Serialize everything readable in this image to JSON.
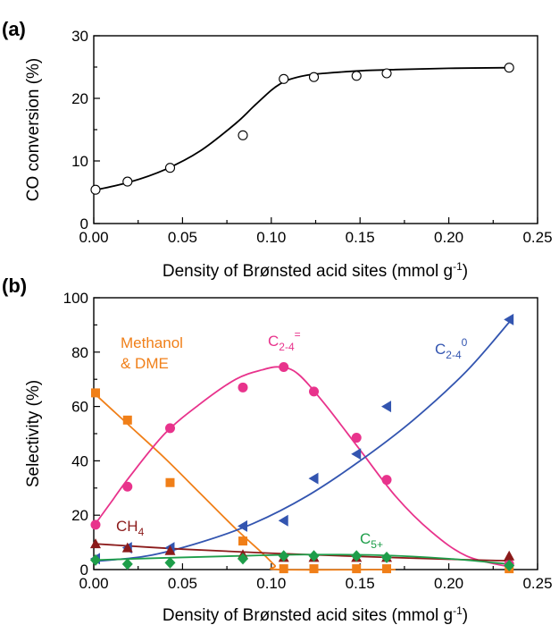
{
  "chart_data": [
    {
      "panel_label": "(a)",
      "type": "scatter",
      "xlabel": "Density of Brønsted acid sites (mmol g",
      "xlabel_sup": "-1",
      "xlabel_close": ")",
      "ylabel": "CO conversion (%)",
      "xlim": [
        0.0,
        0.25
      ],
      "ylim": [
        0,
        30
      ],
      "xticks": [
        "0.00",
        "0.05",
        "0.10",
        "0.15",
        "0.20",
        "0.25"
      ],
      "xtick_values": [
        0.0,
        0.05,
        0.1,
        0.15,
        0.2,
        0.25
      ],
      "yticks": [
        "0",
        "10",
        "20",
        "30"
      ],
      "ytick_values": [
        0,
        10,
        20,
        30
      ],
      "grid": false,
      "series": [
        {
          "marker": "open-circle",
          "color": "#000000",
          "x": [
            0.001,
            0.019,
            0.043,
            0.084,
            0.107,
            0.124,
            0.148,
            0.165,
            0.234
          ],
          "y": [
            5.4,
            6.7,
            8.9,
            14.1,
            23.1,
            23.4,
            23.6,
            24.0,
            24.9
          ]
        }
      ],
      "fit_curves": [
        {
          "color": "#000000",
          "x": [
            0.0,
            0.02,
            0.04,
            0.06,
            0.08,
            0.09,
            0.1,
            0.105,
            0.11,
            0.12,
            0.13,
            0.15,
            0.17,
            0.2,
            0.235
          ],
          "y": [
            5.3,
            6.6,
            8.6,
            11.6,
            16.0,
            18.7,
            21.3,
            22.3,
            23.0,
            23.7,
            24.0,
            24.4,
            24.6,
            24.8,
            24.9
          ]
        }
      ]
    },
    {
      "panel_label": "(b)",
      "type": "scatter",
      "xlabel": "Density of Brønsted acid sites (mmol g",
      "xlabel_sup": "-1",
      "xlabel_close": ")",
      "ylabel": "Selectivity (%)",
      "xlim": [
        0.0,
        0.25
      ],
      "ylim": [
        0,
        100
      ],
      "xticks": [
        "0.00",
        "0.05",
        "0.10",
        "0.15",
        "0.20",
        "0.25"
      ],
      "xtick_values": [
        0.0,
        0.05,
        0.1,
        0.15,
        0.2,
        0.25
      ],
      "yticks": [
        "0",
        "20",
        "40",
        "60",
        "80",
        "100"
      ],
      "ytick_values": [
        0,
        20,
        40,
        60,
        80,
        100
      ],
      "grid": false,
      "series": [
        {
          "label_main": "Methanol",
          "label_second": "& DME",
          "marker": "square",
          "color": "#F07F18",
          "x": [
            0.001,
            0.019,
            0.043,
            0.084,
            0.107,
            0.124,
            0.148,
            0.165,
            0.234
          ],
          "y": [
            65,
            55,
            32,
            10.5,
            0.3,
            0.3,
            0.3,
            0.3,
            0.3
          ]
        },
        {
          "label_main": "C",
          "label_sub": "2-4",
          "label_sup": "=",
          "marker": "circle",
          "color": "#E8338C",
          "x": [
            0.001,
            0.019,
            0.043,
            0.084,
            0.107,
            0.124,
            0.148,
            0.165,
            0.234
          ],
          "y": [
            16.5,
            30.5,
            52,
            67,
            74.5,
            65.5,
            48.5,
            33,
            2
          ]
        },
        {
          "label_main": "C",
          "label_sub": "2-4",
          "label_sup": "0",
          "marker": "left-triangle",
          "color": "#3355B0",
          "x": [
            0.001,
            0.019,
            0.043,
            0.084,
            0.107,
            0.124,
            0.148,
            0.165,
            0.234
          ],
          "y": [
            4,
            8,
            8,
            16,
            18,
            33.5,
            42.5,
            60,
            92
          ]
        },
        {
          "label_main": "CH",
          "label_sub": "4",
          "marker": "triangle",
          "color": "#8B1A1A",
          "x": [
            0.001,
            0.019,
            0.043,
            0.084,
            0.107,
            0.124,
            0.148,
            0.165,
            0.234
          ],
          "y": [
            9.5,
            8,
            7,
            5.5,
            4.5,
            4.5,
            4.5,
            4.5,
            5
          ]
        },
        {
          "label_main": "C",
          "label_sub": "5+",
          "marker": "diamond",
          "color": "#1E9E4A",
          "x": [
            0.001,
            0.019,
            0.043,
            0.084,
            0.107,
            0.124,
            0.148,
            0.165,
            0.234
          ],
          "y": [
            3.5,
            2,
            2.5,
            4,
            5,
            5,
            5,
            4.5,
            1.5
          ]
        }
      ],
      "fit_curves": [
        {
          "series": "Methanol & DME",
          "color": "#F07F18",
          "x": [
            0.0,
            0.02,
            0.04,
            0.06,
            0.08,
            0.095,
            0.102,
            0.105,
            0.17
          ],
          "y": [
            65,
            53,
            41,
            28,
            15,
            6,
            1.5,
            0,
            0
          ]
        },
        {
          "series": "C2-4=",
          "color": "#E8338C",
          "x": [
            0.0,
            0.01,
            0.02,
            0.04,
            0.06,
            0.08,
            0.095,
            0.105,
            0.115,
            0.13,
            0.15,
            0.17,
            0.19,
            0.21,
            0.234
          ],
          "y": [
            16,
            25,
            34,
            50,
            61,
            70,
            73.5,
            74.5,
            72,
            61,
            44,
            27,
            14,
            5,
            1
          ]
        },
        {
          "series": "C2-4 0",
          "color": "#3355B0",
          "x": [
            0.0,
            0.03,
            0.06,
            0.09,
            0.12,
            0.15,
            0.18,
            0.21,
            0.234
          ],
          "y": [
            3,
            5,
            10,
            17,
            27,
            40,
            55,
            73,
            91
          ]
        },
        {
          "series": "CH4",
          "color": "#8B1A1A",
          "x": [
            0.0,
            0.05,
            0.1,
            0.15,
            0.2,
            0.234
          ],
          "y": [
            9.5,
            7.5,
            6,
            4.8,
            3.8,
            3.2
          ]
        },
        {
          "series": "C5+",
          "color": "#1E9E4A",
          "x": [
            0.0,
            0.04,
            0.08,
            0.12,
            0.16,
            0.2,
            0.234
          ],
          "y": [
            3.5,
            4.3,
            5,
            5.5,
            5.3,
            4,
            2
          ]
        }
      ]
    }
  ]
}
